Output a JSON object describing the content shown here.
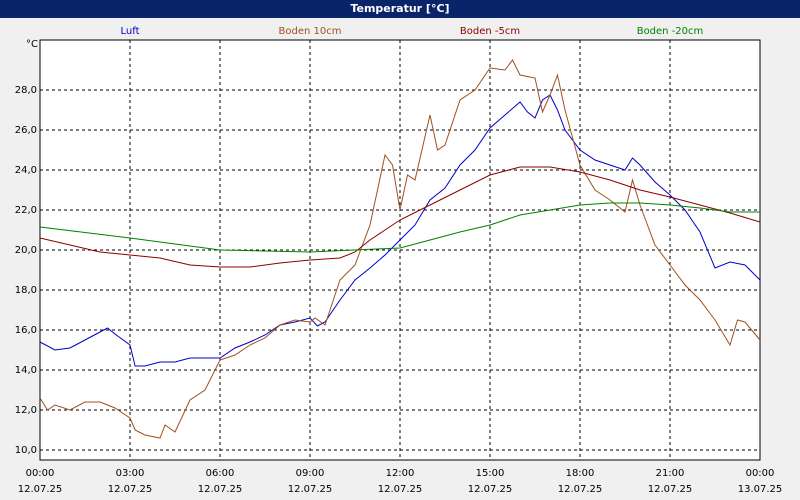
{
  "chart_data": {
    "type": "line",
    "title": "Temperatur [°C]",
    "y_label": "°C",
    "xlim": [
      0,
      24
    ],
    "ylim": [
      9.5,
      30.5
    ],
    "grid": true,
    "xticks": [
      {
        "value": 0,
        "label": "00:00",
        "date": "12.07.25"
      },
      {
        "value": 3,
        "label": "03:00",
        "date": "12.07.25"
      },
      {
        "value": 6,
        "label": "06:00",
        "date": "12.07.25"
      },
      {
        "value": 9,
        "label": "09:00",
        "date": "12.07.25"
      },
      {
        "value": 12,
        "label": "12:00",
        "date": "12.07.25"
      },
      {
        "value": 15,
        "label": "15:00",
        "date": "12.07.25"
      },
      {
        "value": 18,
        "label": "18:00",
        "date": "12.07.25"
      },
      {
        "value": 21,
        "label": "21:00",
        "date": "12.07.25"
      },
      {
        "value": 24,
        "label": "00:00",
        "date": "13.07.25"
      }
    ],
    "yticks": [
      {
        "value": 10,
        "label": "10,0"
      },
      {
        "value": 12,
        "label": "12,0"
      },
      {
        "value": 14,
        "label": "14,0"
      },
      {
        "value": 16,
        "label": "16,0"
      },
      {
        "value": 18,
        "label": "18,0"
      },
      {
        "value": 20,
        "label": "20,0"
      },
      {
        "value": 22,
        "label": "22,0"
      },
      {
        "value": 24,
        "label": "24,0"
      },
      {
        "value": 26,
        "label": "26,0"
      },
      {
        "value": 28,
        "label": "28,0"
      }
    ],
    "series": [
      {
        "name": "Luft",
        "color": "#0000c8",
        "x": [
          0,
          0.5,
          1,
          1.5,
          2,
          2.25,
          2.5,
          3,
          3.17,
          3.5,
          4,
          4.5,
          5,
          5.5,
          6,
          6.5,
          7,
          7.5,
          8,
          8.5,
          9,
          9.25,
          9.5,
          10,
          10.5,
          11,
          11.5,
          12,
          12.5,
          13,
          13.5,
          14,
          14.5,
          15,
          15.5,
          16,
          16.25,
          16.5,
          16.75,
          17,
          17.25,
          17.5,
          18,
          18.5,
          19,
          19.5,
          19.75,
          20,
          20.5,
          21,
          21.5,
          22,
          22.5,
          23,
          23.5,
          24
        ],
        "values": [
          15.4,
          15.0,
          15.1,
          15.5,
          15.9,
          16.1,
          15.8,
          15.25,
          14.2,
          14.2,
          14.4,
          14.4,
          14.6,
          14.6,
          14.6,
          15.1,
          15.4,
          15.75,
          16.25,
          16.4,
          16.6,
          16.2,
          16.4,
          17.5,
          18.5,
          19.1,
          19.75,
          20.5,
          21.25,
          22.5,
          23.1,
          24.25,
          25.0,
          26.1,
          26.75,
          27.4,
          26.9,
          26.6,
          27.5,
          27.75,
          27.0,
          26.0,
          25.0,
          24.5,
          24.25,
          24.0,
          24.6,
          24.25,
          23.4,
          22.75,
          22.0,
          20.9,
          19.1,
          19.4,
          19.25,
          18.5
        ]
      },
      {
        "name": "Boden 10cm",
        "color": "#a0501e",
        "x": [
          0,
          0.25,
          0.5,
          1,
          1.5,
          2,
          2.5,
          3,
          3.17,
          3.5,
          4,
          4.17,
          4.5,
          5,
          5.5,
          6,
          6.5,
          7,
          7.5,
          8,
          8.5,
          9,
          9.17,
          9.5,
          10,
          10.5,
          11,
          11.5,
          11.75,
          12,
          12.25,
          12.5,
          13,
          13.25,
          13.5,
          14,
          14.5,
          15,
          15.5,
          15.75,
          16,
          16.5,
          16.75,
          17,
          17.25,
          17.5,
          18,
          18.5,
          19,
          19.5,
          19.75,
          20,
          20.5,
          21,
          21.5,
          22,
          22.5,
          23,
          23.25,
          23.5,
          24
        ],
        "values": [
          12.6,
          12.0,
          12.25,
          12.0,
          12.4,
          12.4,
          12.1,
          11.6,
          11.0,
          10.75,
          10.6,
          11.25,
          10.9,
          12.5,
          13.0,
          14.5,
          14.75,
          15.25,
          15.6,
          16.25,
          16.5,
          16.4,
          16.6,
          16.25,
          18.5,
          19.25,
          21.25,
          24.75,
          24.25,
          22.0,
          23.75,
          23.5,
          26.75,
          25.0,
          25.25,
          27.5,
          28.0,
          29.1,
          29.0,
          29.5,
          28.75,
          28.6,
          26.9,
          27.75,
          28.75,
          27.0,
          24.25,
          23.0,
          22.5,
          21.9,
          23.5,
          22.25,
          20.25,
          19.25,
          18.25,
          17.5,
          16.5,
          15.25,
          16.5,
          16.4,
          15.5
        ]
      },
      {
        "name": "Boden -5cm",
        "color": "#8b0000",
        "x": [
          0,
          2,
          3,
          4,
          5,
          6,
          7,
          8,
          9,
          10,
          10.5,
          11,
          12,
          13,
          14,
          15,
          16,
          17,
          18,
          19,
          20,
          21,
          22,
          23,
          24
        ],
        "values": [
          20.6,
          19.9,
          19.75,
          19.6,
          19.25,
          19.15,
          19.15,
          19.35,
          19.5,
          19.6,
          19.9,
          20.5,
          21.5,
          22.25,
          23.0,
          23.75,
          24.15,
          24.15,
          23.9,
          23.5,
          23.0,
          22.65,
          22.25,
          21.85,
          21.4
        ]
      },
      {
        "name": "Boden -20cm",
        "color": "#008000",
        "x": [
          0,
          3,
          6,
          9,
          12,
          13,
          14,
          15,
          16,
          17,
          18,
          19,
          20,
          21,
          22,
          23,
          24
        ],
        "values": [
          21.15,
          20.6,
          20.0,
          19.9,
          20.1,
          20.5,
          20.9,
          21.25,
          21.75,
          22.0,
          22.25,
          22.35,
          22.35,
          22.25,
          22.1,
          21.9,
          21.9
        ]
      }
    ]
  }
}
